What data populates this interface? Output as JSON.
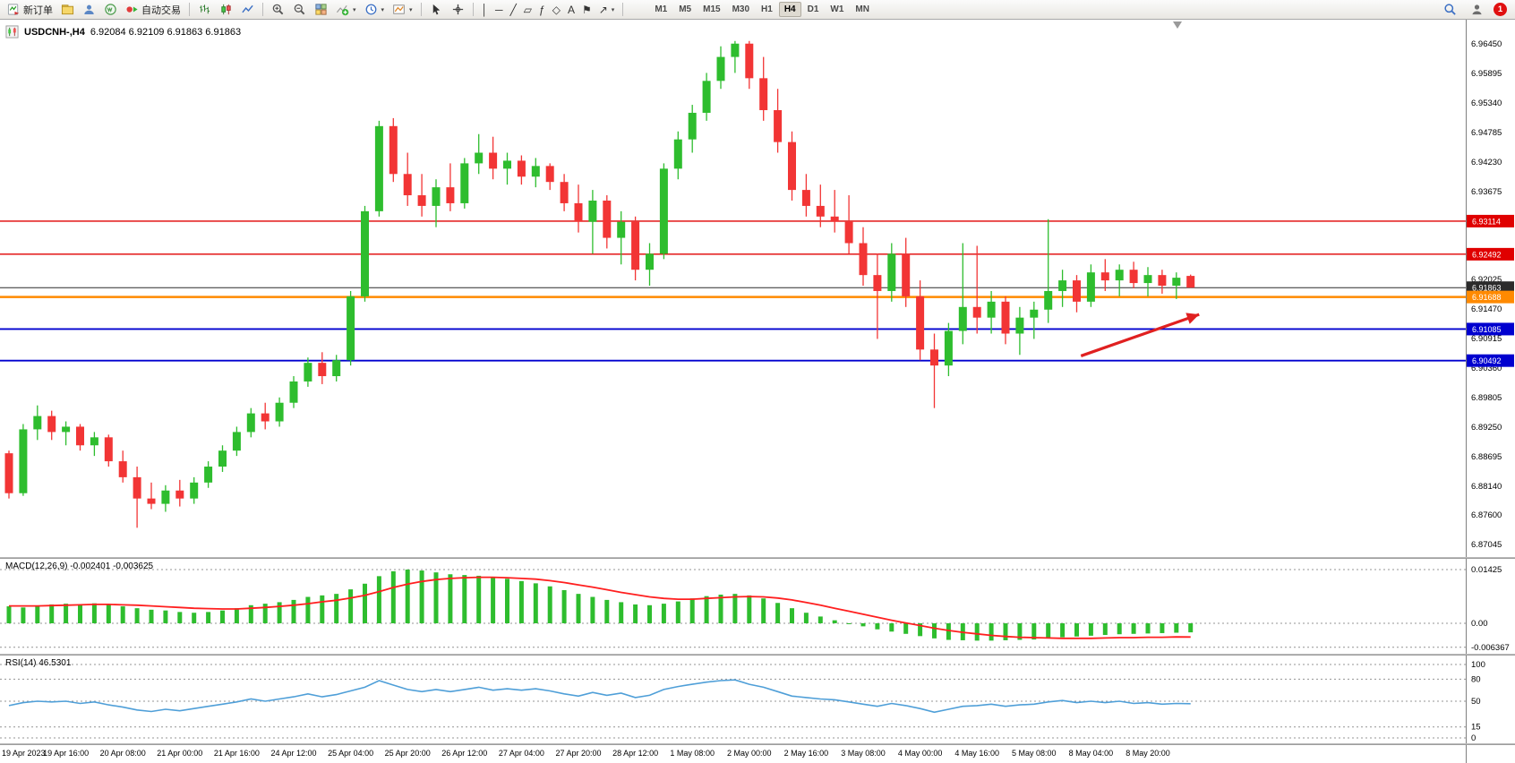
{
  "toolbar": {
    "new_order_label": "新订单",
    "autotrading_label": "自动交易",
    "timeframes": [
      "M1",
      "M5",
      "M15",
      "M30",
      "H1",
      "H4",
      "D1",
      "W1",
      "MN"
    ],
    "active_timeframe": "H4",
    "notification_count": "1",
    "drawing_tools": [
      {
        "name": "vertical-line",
        "glyph": "│"
      },
      {
        "name": "horizontal-line",
        "glyph": "─"
      },
      {
        "name": "trendline",
        "glyph": "╱"
      },
      {
        "name": "equidistant-channel",
        "glyph": "▱"
      },
      {
        "name": "fibonacci",
        "glyph": "ƒ"
      },
      {
        "name": "shapes",
        "glyph": "◇"
      },
      {
        "name": "text",
        "glyph": "A"
      },
      {
        "name": "text-label",
        "glyph": "⚑"
      },
      {
        "name": "arrows",
        "glyph": "↗",
        "dropdown": true
      }
    ]
  },
  "chart": {
    "symbol_title": "USDCNH-,H4",
    "ohlc_text": "6.92084 6.92109 6.91863 6.91863",
    "axis_labels": [
      "6.96450",
      "6.95895",
      "6.95340",
      "6.94785",
      "6.94230",
      "6.93675",
      "6.92025",
      "6.91470",
      "6.90915",
      "6.90360",
      "6.89805",
      "6.89250",
      "6.88695",
      "6.88140",
      "6.87600",
      "6.87045"
    ],
    "levels": [
      {
        "price": "6.93114",
        "color": "#e00000",
        "thickness": 1.4,
        "role": "resistance"
      },
      {
        "price": "6.92492",
        "color": "#e00000",
        "thickness": 1.4,
        "role": "resistance"
      },
      {
        "price": "6.91863",
        "color": "#2b2b2b",
        "thickness": 1,
        "role": "bid"
      },
      {
        "price": "6.91688",
        "color": "#ff8a00",
        "thickness": 2.4,
        "role": "level"
      },
      {
        "price": "6.91085",
        "color": "#0000cf",
        "thickness": 1.8,
        "role": "support"
      },
      {
        "price": "6.90492",
        "color": "#0000cf",
        "thickness": 1.8,
        "role": "support"
      }
    ],
    "timeline": [
      "19 Apr 2023",
      "19 Apr 16:00",
      "20 Apr 08:00",
      "21 Apr 00:00",
      "21 Apr 16:00",
      "24 Apr 12:00",
      "25 Apr 04:00",
      "25 Apr 20:00",
      "26 Apr 12:00",
      "27 Apr 04:00",
      "27 Apr 20:00",
      "28 Apr 12:00",
      "1 May 08:00",
      "2 May 00:00",
      "2 May 16:00",
      "3 May 08:00",
      "4 May 00:00",
      "4 May 16:00",
      "5 May 08:00",
      "8 May 04:00",
      "8 May 20:00"
    ]
  },
  "macd": {
    "label": "MACD(12,26,9) -0.002401 -0.003625",
    "axis_labels": [
      "0.01425",
      "0.00",
      "-0.006367"
    ]
  },
  "rsi": {
    "label": "RSI(14) 46.5301",
    "axis_labels": [
      "100",
      "80",
      "50",
      "15",
      "0"
    ]
  },
  "annotations": {
    "arrow": {
      "color": "#e02020",
      "from_bar": 75.3,
      "from_price": 6.9058,
      "to_bar": 83.6,
      "to_price": 6.9136
    }
  },
  "chart_data": [
    {
      "type": "candlestick",
      "symbol": "USDCNH",
      "timeframe": "H4",
      "ylim": [
        6.868,
        6.969
      ],
      "ohlc": [
        [
          6.8875,
          6.888,
          6.879,
          6.88
        ],
        [
          6.88,
          6.893,
          6.8795,
          6.892
        ],
        [
          6.892,
          6.8965,
          6.89,
          6.8945
        ],
        [
          6.8945,
          6.8955,
          6.89,
          6.8915
        ],
        [
          6.8915,
          6.8935,
          6.889,
          6.8925
        ],
        [
          6.8925,
          6.893,
          6.888,
          6.889
        ],
        [
          6.889,
          6.8915,
          6.887,
          6.8905
        ],
        [
          6.8905,
          6.891,
          6.885,
          6.886
        ],
        [
          6.886,
          6.888,
          6.882,
          6.883
        ],
        [
          6.883,
          6.885,
          6.8735,
          6.879
        ],
        [
          6.879,
          6.882,
          6.877,
          6.878
        ],
        [
          6.878,
          6.8815,
          6.8765,
          6.8805
        ],
        [
          6.8805,
          6.8825,
          6.8775,
          6.879
        ],
        [
          6.879,
          6.883,
          6.878,
          6.882
        ],
        [
          6.882,
          6.886,
          6.881,
          6.885
        ],
        [
          6.885,
          6.889,
          6.884,
          6.888
        ],
        [
          6.888,
          6.8925,
          6.887,
          6.8915
        ],
        [
          6.8915,
          6.896,
          6.8905,
          6.895
        ],
        [
          6.895,
          6.897,
          6.892,
          6.8935
        ],
        [
          6.8935,
          6.898,
          6.8925,
          6.897
        ],
        [
          6.897,
          6.902,
          6.896,
          6.901
        ],
        [
          6.901,
          6.9055,
          6.9,
          6.9045
        ],
        [
          6.9045,
          6.9065,
          6.9005,
          6.902
        ],
        [
          6.902,
          6.906,
          6.901,
          6.905
        ],
        [
          6.905,
          6.918,
          6.904,
          6.917
        ],
        [
          6.917,
          6.934,
          6.916,
          6.933
        ],
        [
          6.933,
          6.95,
          6.932,
          6.949
        ],
        [
          6.949,
          6.9505,
          6.9385,
          6.94
        ],
        [
          6.94,
          6.944,
          6.934,
          6.936
        ],
        [
          6.936,
          6.94,
          6.932,
          6.934
        ],
        [
          6.934,
          6.939,
          6.93,
          6.9375
        ],
        [
          6.9375,
          6.942,
          6.933,
          6.9345
        ],
        [
          6.9345,
          6.943,
          6.9335,
          6.942
        ],
        [
          6.942,
          6.9475,
          6.94,
          6.944
        ],
        [
          6.944,
          6.947,
          6.939,
          6.941
        ],
        [
          6.941,
          6.944,
          6.938,
          6.9425
        ],
        [
          6.9425,
          6.9435,
          6.938,
          6.9395
        ],
        [
          6.9395,
          6.943,
          6.9375,
          6.9415
        ],
        [
          6.9415,
          6.942,
          6.937,
          6.9385
        ],
        [
          6.9385,
          6.94,
          6.933,
          6.9345
        ],
        [
          6.9345,
          6.938,
          6.929,
          6.931
        ],
        [
          6.931,
          6.937,
          6.925,
          6.935
        ],
        [
          6.935,
          6.936,
          6.926,
          6.928
        ],
        [
          6.928,
          6.933,
          6.923,
          6.931
        ],
        [
          6.931,
          6.932,
          6.92,
          6.922
        ],
        [
          6.922,
          6.927,
          6.919,
          6.925
        ],
        [
          6.925,
          6.942,
          6.924,
          6.941
        ],
        [
          6.941,
          6.948,
          6.939,
          6.9465
        ],
        [
          6.9465,
          6.953,
          6.944,
          6.9515
        ],
        [
          6.9515,
          6.959,
          6.95,
          6.9575
        ],
        [
          6.9575,
          6.964,
          6.956,
          6.962
        ],
        [
          6.962,
          6.965,
          6.959,
          6.9645
        ],
        [
          6.9645,
          6.965,
          6.956,
          6.958
        ],
        [
          6.958,
          6.962,
          6.95,
          6.952
        ],
        [
          6.952,
          6.956,
          6.944,
          6.946
        ],
        [
          6.946,
          6.948,
          6.935,
          6.937
        ],
        [
          6.937,
          6.94,
          6.932,
          6.934
        ],
        [
          6.934,
          6.938,
          6.93,
          6.932
        ],
        [
          6.932,
          6.937,
          6.929,
          6.931
        ],
        [
          6.931,
          6.936,
          6.925,
          6.927
        ],
        [
          6.927,
          6.93,
          6.919,
          6.921
        ],
        [
          6.921,
          6.925,
          6.909,
          6.918
        ],
        [
          6.918,
          6.927,
          6.916,
          6.925
        ],
        [
          6.925,
          6.928,
          6.915,
          6.917
        ],
        [
          6.917,
          6.92,
          6.905,
          6.907
        ],
        [
          6.907,
          6.91,
          6.896,
          6.904
        ],
        [
          6.904,
          6.912,
          6.902,
          6.9105
        ],
        [
          6.9105,
          6.927,
          6.908,
          6.915
        ],
        [
          6.915,
          6.9265,
          6.91,
          6.913
        ],
        [
          6.913,
          6.918,
          6.91,
          6.916
        ],
        [
          6.916,
          6.917,
          6.908,
          6.91
        ],
        [
          6.91,
          6.915,
          6.906,
          6.913
        ],
        [
          6.913,
          6.916,
          6.909,
          6.9145
        ],
        [
          6.9145,
          6.9315,
          6.912,
          6.918
        ],
        [
          6.918,
          6.922,
          6.915,
          6.92
        ],
        [
          6.92,
          6.921,
          6.914,
          6.916
        ],
        [
          6.916,
          6.923,
          6.915,
          6.9215
        ],
        [
          6.9215,
          6.924,
          6.918,
          6.92
        ],
        [
          6.92,
          6.923,
          6.917,
          6.922
        ],
        [
          6.922,
          6.9235,
          6.9185,
          6.9195
        ],
        [
          6.9195,
          6.9225,
          6.917,
          6.921
        ],
        [
          6.921,
          6.922,
          6.9175,
          6.919
        ],
        [
          6.919,
          6.9215,
          6.9165,
          6.9205
        ],
        [
          6.92084,
          6.92109,
          6.91863,
          6.91863
        ]
      ]
    },
    {
      "type": "bar",
      "name": "MACD(12,26,9) histogram with signal line",
      "ylim": [
        -0.0075,
        0.0165
      ],
      "values": [
        0.0045,
        0.0042,
        0.0047,
        0.005,
        0.0052,
        0.005,
        0.0053,
        0.005,
        0.0045,
        0.004,
        0.0036,
        0.0034,
        0.003,
        0.0028,
        0.003,
        0.0034,
        0.004,
        0.0048,
        0.0052,
        0.0056,
        0.0062,
        0.007,
        0.0074,
        0.0078,
        0.009,
        0.0105,
        0.0125,
        0.0138,
        0.01425,
        0.014,
        0.0135,
        0.013,
        0.0128,
        0.0126,
        0.0122,
        0.0118,
        0.0112,
        0.0106,
        0.0098,
        0.0088,
        0.0078,
        0.007,
        0.0062,
        0.0056,
        0.005,
        0.0048,
        0.0052,
        0.0058,
        0.0066,
        0.0072,
        0.0076,
        0.0078,
        0.0074,
        0.0066,
        0.0054,
        0.004,
        0.0028,
        0.0018,
        0.0008,
        0.0,
        -0.0008,
        -0.0016,
        -0.0022,
        -0.0028,
        -0.0034,
        -0.004,
        -0.0044,
        -0.0045,
        -0.0046,
        -0.0046,
        -0.0045,
        -0.0044,
        -0.0043,
        -0.004,
        -0.0037,
        -0.0035,
        -0.0033,
        -0.0031,
        -0.0029,
        -0.0028,
        -0.0027,
        -0.0026,
        -0.0025,
        -0.002401
      ],
      "signal": [
        0.0046,
        0.0046,
        0.0046,
        0.0047,
        0.0048,
        0.0049,
        0.005,
        0.005,
        0.0049,
        0.0048,
        0.0046,
        0.0044,
        0.0042,
        0.004,
        0.0039,
        0.0038,
        0.0038,
        0.004,
        0.0042,
        0.0045,
        0.0048,
        0.0052,
        0.0057,
        0.0061,
        0.0067,
        0.0074,
        0.0084,
        0.0095,
        0.0104,
        0.0111,
        0.0116,
        0.0119,
        0.0121,
        0.0122,
        0.0122,
        0.0121,
        0.0119,
        0.0117,
        0.0113,
        0.0108,
        0.0102,
        0.0096,
        0.0089,
        0.0082,
        0.0076,
        0.007,
        0.0066,
        0.0064,
        0.0064,
        0.0066,
        0.0068,
        0.007,
        0.0071,
        0.007,
        0.0067,
        0.0062,
        0.0055,
        0.0048,
        0.004,
        0.0032,
        0.0024,
        0.0016,
        0.0008,
        0.0001,
        -0.0006,
        -0.0013,
        -0.0019,
        -0.0024,
        -0.0028,
        -0.0032,
        -0.0035,
        -0.0037,
        -0.0038,
        -0.0039,
        -0.004,
        -0.004,
        -0.004,
        -0.0039,
        -0.0038,
        -0.0038,
        -0.0037,
        -0.0037,
        -0.0036,
        -0.003625
      ]
    },
    {
      "type": "line",
      "name": "RSI(14)",
      "ylim": [
        0,
        100
      ],
      "levels": [
        80,
        50,
        15
      ],
      "values": [
        44,
        48,
        50,
        49,
        50,
        47,
        49,
        45,
        42,
        38,
        36,
        39,
        37,
        40,
        43,
        46,
        49,
        53,
        50,
        53,
        56,
        60,
        56,
        59,
        64,
        69,
        78,
        72,
        66,
        63,
        66,
        63,
        66,
        69,
        65,
        67,
        65,
        67,
        64,
        60,
        57,
        62,
        58,
        61,
        55,
        58,
        66,
        70,
        73,
        76,
        78,
        79,
        73,
        69,
        63,
        57,
        55,
        53,
        52,
        49,
        46,
        43,
        47,
        44,
        40,
        35,
        39,
        43,
        44,
        46,
        43,
        45,
        46,
        49,
        51,
        48,
        50,
        48,
        50,
        47,
        48,
        46,
        47,
        46.53
      ]
    }
  ]
}
